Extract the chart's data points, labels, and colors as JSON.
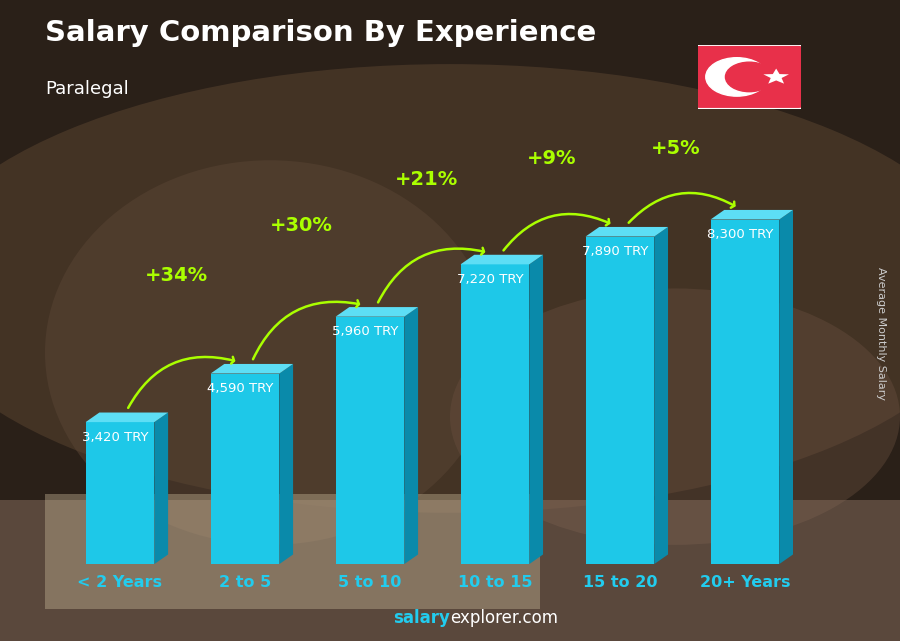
{
  "title": "Salary Comparison By Experience",
  "subtitle": "Paralegal",
  "ylabel": "Average Monthly Salary",
  "categories": [
    "< 2 Years",
    "2 to 5",
    "5 to 10",
    "10 to 15",
    "15 to 20",
    "20+ Years"
  ],
  "values": [
    3420,
    4590,
    5960,
    7220,
    7890,
    8300
  ],
  "value_labels": [
    "3,420 TRY",
    "4,590 TRY",
    "5,960 TRY",
    "7,220 TRY",
    "7,890 TRY",
    "8,300 TRY"
  ],
  "pct_changes": [
    "+34%",
    "+30%",
    "+21%",
    "+9%",
    "+5%"
  ],
  "bar_face_color": "#1EC8E8",
  "bar_right_color": "#0A8AAA",
  "bar_top_color": "#5DDEF5",
  "bg_color": "#3a2e28",
  "title_color": "#FFFFFF",
  "subtitle_color": "#FFFFFF",
  "value_label_color": "#FFFFFF",
  "pct_color": "#AAFF00",
  "arrow_color": "#AAFF00",
  "xlabel_color": "#22CCEE",
  "footer_salary_color": "#22CCEE",
  "footer_explorer_color": "#FFFFFF",
  "ylabel_color": "#CCCCCC",
  "flag_red": "#E8304A",
  "ylim": [
    0,
    10500
  ],
  "bar_width": 0.55
}
